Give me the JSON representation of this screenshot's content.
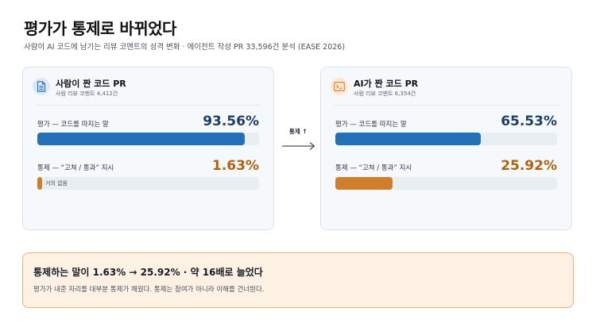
{
  "header": {
    "title": "평가가 통제로 바뀌었다",
    "subtitle": "사람이 AI 코드에 남기는 리뷰 코멘트의 성격 변화 · 에이전트 작성 PR 33,596건 분석 (EASE 2026)"
  },
  "human_card": {
    "icon": "document-icon",
    "title": "사람이 짠 코드 PR",
    "subtitle": "사람 리뷰 코멘트 4,412건",
    "eval_label": "평가 — 코드를 따지는 말",
    "eval_value": "93.56%",
    "eval_fraction": 0.9356,
    "control_label": "통제 — “고쳐 / 통과” 지시",
    "control_value": "1.63%",
    "control_fraction": 0.0163,
    "control_note": "거의 없음"
  },
  "ai_card": {
    "icon": "terminal-icon",
    "title": "AI가 짠 코드 PR",
    "subtitle": "사람 리뷰 코멘트 6,354건",
    "eval_label": "평가 — 코드를 따지는 말",
    "eval_value": "65.53%",
    "eval_fraction": 0.6553,
    "control_label": "통제 — “고쳐 / 통과” 지시",
    "control_value": "25.92%",
    "control_fraction": 0.2592
  },
  "transition": {
    "label": "통제 ↑"
  },
  "callout": {
    "title": "통제하는 말이 1.63% → 25.92% · 약 16배로 늘었다",
    "body": "평가가 내준 자리를 대부분 통제가 채웠다. 통제는 참여가 아니라 이해를 건너뛴다."
  },
  "colors": {
    "blue": "#2271b8",
    "orange": "#cf7f2b",
    "callout_bg": "#fdf1e4"
  }
}
